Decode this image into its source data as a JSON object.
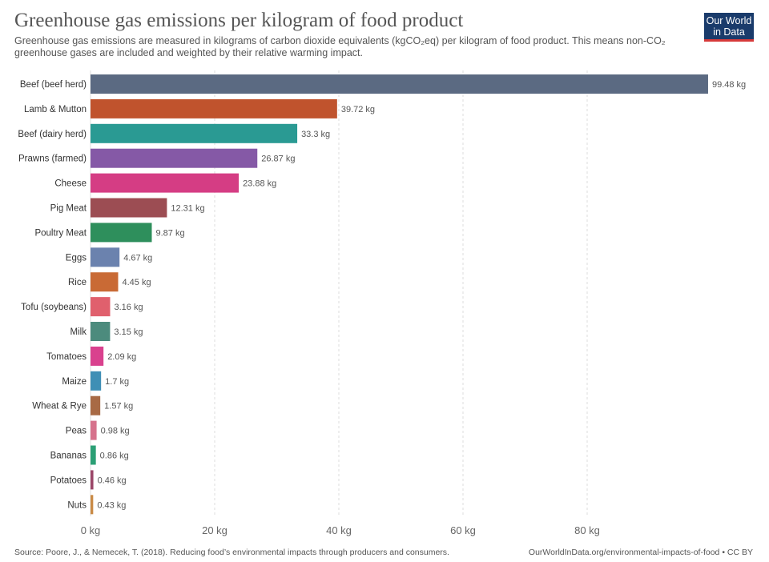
{
  "header": {
    "title": "Greenhouse gas emissions per kilogram of food product",
    "subtitle": "Greenhouse gas emissions are measured in kilograms of carbon dioxide equivalents (kgCO₂eq) per kilogram of food product. This means non-CO₂ greenhouse gases are included and weighted by their relative warming impact."
  },
  "logo": {
    "line1": "Our World",
    "line2": "in Data"
  },
  "footer": {
    "source": "Source: Poore, J., & Nemecek, T. (2018). Reducing food’s environmental impacts through producers and consumers.",
    "url": "OurWorldInData.org/environmental-impacts-of-food • CC BY"
  },
  "chart_data": {
    "type": "bar",
    "orientation": "horizontal",
    "unit_suffix": " kg",
    "categories": [
      "Beef (beef herd)",
      "Lamb & Mutton",
      "Beef (dairy herd)",
      "Prawns (farmed)",
      "Cheese",
      "Pig Meat",
      "Poultry Meat",
      "Eggs",
      "Rice",
      "Tofu (soybeans)",
      "Milk",
      "Tomatoes",
      "Maize",
      "Wheat & Rye",
      "Peas",
      "Bananas",
      "Potatoes",
      "Nuts"
    ],
    "values": [
      99.48,
      39.72,
      33.3,
      26.87,
      23.88,
      12.31,
      9.87,
      4.67,
      4.45,
      3.16,
      3.15,
      2.09,
      1.7,
      1.57,
      0.98,
      0.86,
      0.46,
      0.43
    ],
    "value_labels": [
      "99.48 kg",
      "39.72 kg",
      "33.3 kg",
      "26.87 kg",
      "23.88 kg",
      "12.31 kg",
      "9.87 kg",
      "4.67 kg",
      "4.45 kg",
      "3.16 kg",
      "3.15 kg",
      "2.09 kg",
      "1.7 kg",
      "1.57 kg",
      "0.98 kg",
      "0.86 kg",
      "0.46 kg",
      "0.43 kg"
    ],
    "colors": [
      "#5b6a82",
      "#c0532d",
      "#2a9a93",
      "#8559a6",
      "#d53d84",
      "#9c4d53",
      "#2e8f5c",
      "#6b82ae",
      "#c96a35",
      "#e0606d",
      "#4c8b7d",
      "#d9418e",
      "#3f8fb5",
      "#a86a45",
      "#d6728c",
      "#2b9f75",
      "#9b4668",
      "#c98a45"
    ],
    "x_ticks": [
      0,
      20,
      40,
      60,
      80
    ],
    "x_tick_labels": [
      "0 kg",
      "20 kg",
      "40 kg",
      "60 kg",
      "80 kg"
    ],
    "xlim": [
      0,
      100
    ],
    "grid": true
  }
}
